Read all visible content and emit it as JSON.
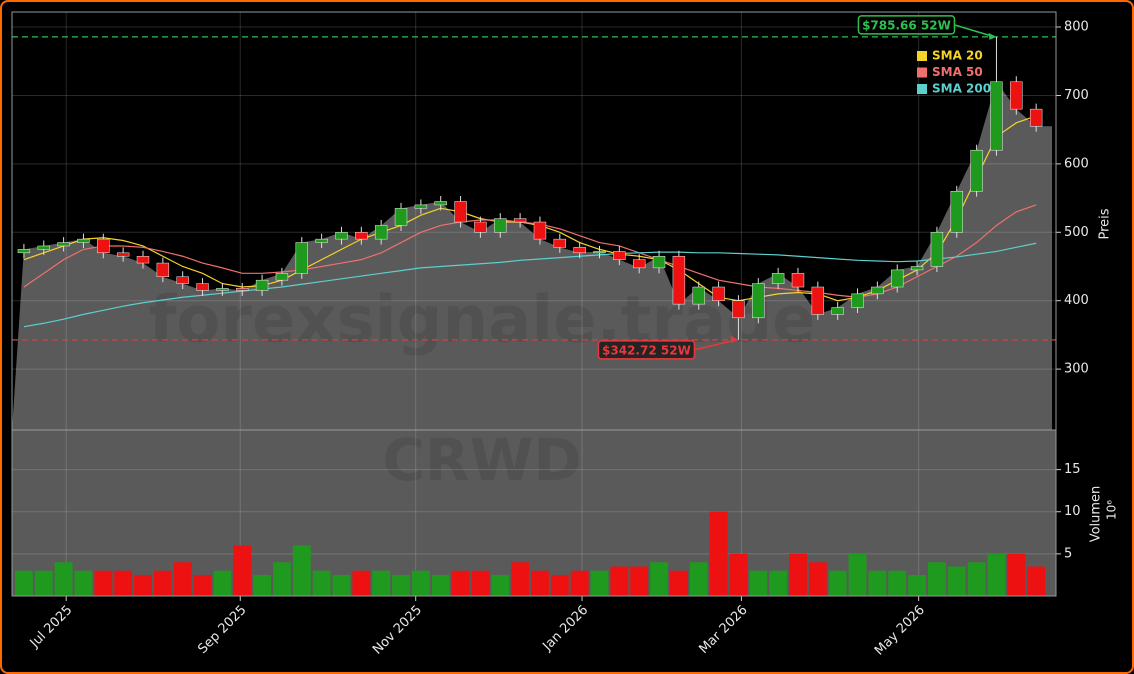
{
  "chart_data": {
    "type": "candlestick",
    "watermark": "forexsignale.trade",
    "symbol": "CRWD",
    "xlim": [
      -0.6,
      52.0
    ],
    "xticks": [
      {
        "value": 2.13,
        "label": "Jul 2025"
      },
      {
        "value": 10.9,
        "label": "Sep 2025"
      },
      {
        "value": 19.74,
        "label": "Nov 2025"
      },
      {
        "value": 28.12,
        "label": "Jan 2026"
      },
      {
        "value": 36.15,
        "label": "Mar 2026"
      },
      {
        "value": 45.08,
        "label": "May 2026"
      }
    ],
    "ylim": [
      211,
      822
    ],
    "yticks": [
      300,
      400,
      500,
      600,
      700,
      800
    ],
    "ylabel": "Preis",
    "grid": true,
    "up_color": "#1f9a1f",
    "down_color": "#ee1111",
    "open": [
      470,
      475,
      480,
      485,
      490,
      470,
      465,
      455,
      435,
      425,
      415,
      418,
      415,
      430,
      440,
      485,
      490,
      500,
      490,
      510,
      535,
      540,
      545,
      515,
      500,
      520,
      515,
      490,
      478,
      470,
      472,
      460,
      448,
      465,
      395,
      420,
      400,
      375,
      425,
      440,
      420,
      380,
      390,
      410,
      420,
      445,
      450,
      500,
      560,
      620,
      720,
      680
    ],
    "high": [
      483,
      488,
      493,
      498,
      498,
      478,
      473,
      463,
      443,
      433,
      426,
      426,
      438,
      448,
      493,
      498,
      508,
      508,
      518,
      543,
      548,
      553,
      553,
      523,
      528,
      528,
      523,
      498,
      486,
      480,
      480,
      468,
      473,
      473,
      428,
      428,
      408,
      433,
      448,
      448,
      428,
      398,
      418,
      428,
      453,
      458,
      508,
      568,
      628,
      785.66,
      728,
      688
    ],
    "low": [
      462,
      467,
      472,
      477,
      462,
      457,
      447,
      427,
      417,
      407,
      407,
      407,
      407,
      422,
      432,
      477,
      482,
      482,
      482,
      502,
      527,
      532,
      507,
      492,
      492,
      507,
      482,
      470,
      462,
      462,
      452,
      440,
      440,
      387,
      387,
      392,
      342.72,
      367,
      417,
      412,
      372,
      372,
      382,
      402,
      412,
      437,
      442,
      492,
      552,
      612,
      672,
      647
    ],
    "close": [
      475,
      480,
      485,
      490,
      470,
      465,
      455,
      435,
      425,
      415,
      418,
      415,
      430,
      440,
      485,
      490,
      500,
      490,
      510,
      535,
      540,
      545,
      515,
      500,
      520,
      515,
      490,
      478,
      470,
      472,
      460,
      448,
      465,
      395,
      420,
      400,
      375,
      425,
      440,
      420,
      380,
      390,
      410,
      420,
      445,
      450,
      500,
      560,
      620,
      720,
      680,
      655
    ],
    "series": [
      {
        "name": "SMA 20",
        "color": "#f5d327",
        "values": [
          460,
          470,
          480,
          490,
          492,
          488,
          480,
          465,
          450,
          440,
          425,
          420,
          422,
          430,
          445,
          460,
          475,
          490,
          500,
          510,
          525,
          535,
          530,
          520,
          515,
          515,
          510,
          500,
          485,
          475,
          468,
          465,
          460,
          445,
          425,
          405,
          400,
          405,
          410,
          412,
          410,
          400,
          405,
          415,
          430,
          445,
          470,
          520,
          580,
          640,
          660,
          670
        ]
      },
      {
        "name": "SMA 50",
        "color": "#f07070",
        "values": [
          420,
          440,
          460,
          475,
          480,
          480,
          478,
          472,
          465,
          455,
          448,
          440,
          440,
          442,
          445,
          450,
          455,
          460,
          470,
          485,
          500,
          510,
          515,
          518,
          518,
          515,
          512,
          505,
          495,
          485,
          480,
          470,
          460,
          450,
          440,
          430,
          425,
          420,
          418,
          415,
          412,
          408,
          405,
          410,
          420,
          435,
          450,
          465,
          485,
          510,
          530,
          540
        ]
      },
      {
        "name": "SMA 200",
        "color": "#5ccfcf",
        "values": [
          362,
          367,
          373,
          380,
          386,
          392,
          397,
          401,
          405,
          408,
          411,
          414,
          417,
          420,
          424,
          428,
          432,
          436,
          440,
          444,
          448,
          450,
          452,
          454,
          456,
          459,
          461,
          463,
          465,
          467,
          469,
          470,
          471,
          471,
          470,
          470,
          469,
          468,
          467,
          465,
          463,
          461,
          459,
          458,
          457,
          458,
          461,
          464,
          468,
          472,
          478,
          484
        ]
      }
    ],
    "annotations": [
      {
        "text": "$785.66 52W",
        "value": 785.66,
        "color": "#2fbf4f"
      },
      {
        "text": "$342.72 52W",
        "value": 342.72,
        "color": "#e8383d"
      }
    ],
    "volume": {
      "ylabel": "Volumen",
      "multiplier": "10⁶",
      "ylim": [
        0,
        19.7
      ],
      "yticks": [
        5,
        10,
        15
      ],
      "values": [
        3,
        3,
        4,
        3,
        3,
        3,
        2.5,
        3,
        4,
        2.5,
        3,
        6,
        2.5,
        4,
        6,
        3,
        2.5,
        3,
        3,
        2.5,
        3,
        2.5,
        3,
        3,
        2.5,
        4,
        3,
        2.5,
        3,
        3,
        3.5,
        3.5,
        4,
        3,
        4,
        10,
        5,
        3,
        3,
        5,
        4,
        3,
        5,
        3,
        3,
        2.5,
        4,
        3.5,
        4,
        5,
        5,
        3.5
      ]
    }
  }
}
